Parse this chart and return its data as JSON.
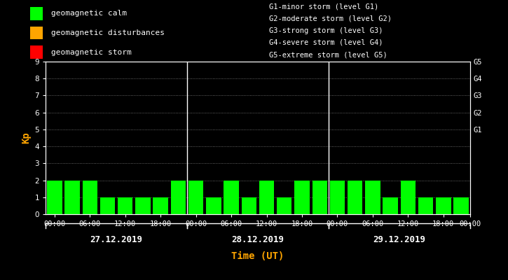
{
  "bg_color": "#000000",
  "bar_color_calm": "#00ff00",
  "bar_color_disturb": "#ffa500",
  "bar_color_storm": "#ff0000",
  "title_color": "#ffa500",
  "text_color": "#ffffff",
  "ylabel_color": "#ffa500",
  "grid_color": "#ffffff",
  "days": [
    "27.12.2019",
    "28.12.2019",
    "29.12.2019"
  ],
  "kp_values": [
    [
      2,
      2,
      2,
      1,
      1,
      1,
      1,
      2
    ],
    [
      2,
      1,
      2,
      1,
      2,
      1,
      2,
      2
    ],
    [
      2,
      2,
      2,
      1,
      2,
      1,
      1,
      1
    ]
  ],
  "ylabel": "Kp",
  "xlabel": "Time (UT)",
  "ylim": [
    0,
    9
  ],
  "yticks": [
    0,
    1,
    2,
    3,
    4,
    5,
    6,
    7,
    8,
    9
  ],
  "legend_calm": "geomagnetic calm",
  "legend_disturb": "geomagnetic disturbances",
  "legend_storm": "geomagnetic storm",
  "right_labels": [
    [
      "G5",
      9.0
    ],
    [
      "G4",
      8.0
    ],
    [
      "G3",
      7.0
    ],
    [
      "G2",
      6.0
    ],
    [
      "G1",
      5.0
    ]
  ],
  "right_annotations": [
    "G1-minor storm (level G1)",
    "G2-moderate storm (level G2)",
    "G3-strong storm (level G3)",
    "G4-severe storm (level G4)",
    "G5-extreme storm (level G5)"
  ],
  "xtick_labels": [
    "00:00",
    "06:00",
    "12:00",
    "18:00",
    "00:00",
    "06:00",
    "12:00",
    "18:00",
    "00:00",
    "06:00",
    "12:00",
    "18:00",
    "00:00"
  ],
  "vline_positions": [
    8,
    16
  ],
  "font_size": 7.5,
  "bar_width": 0.85
}
